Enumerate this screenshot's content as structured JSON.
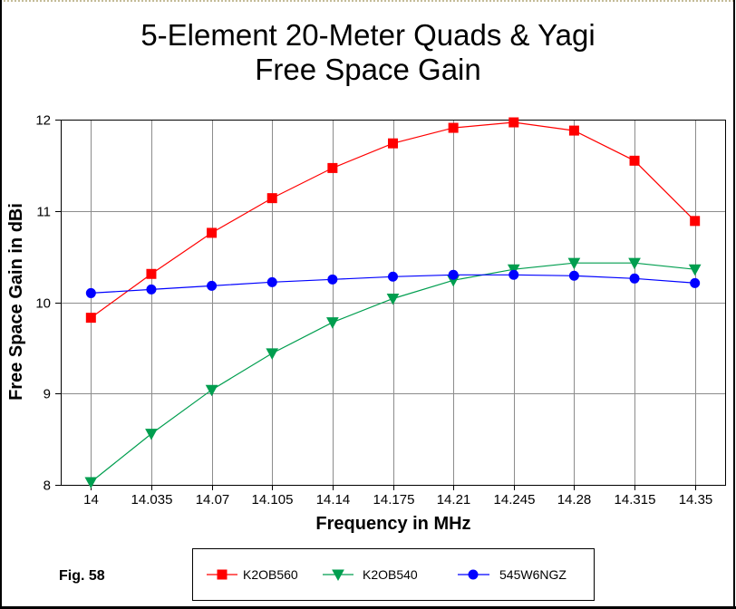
{
  "chart_data": {
    "type": "line",
    "title": "5-Element 20-Meter Quads & Yagi",
    "subtitle": "Free Space Gain",
    "xlabel": "Frequency in MHz",
    "ylabel": "Free Space Gain in dBi",
    "x": [
      14,
      14.035,
      14.07,
      14.105,
      14.14,
      14.175,
      14.21,
      14.245,
      14.28,
      14.315,
      14.35
    ],
    "xlim": [
      13.9825,
      14.3675
    ],
    "y_ticks": [
      12,
      11,
      10,
      9,
      8
    ],
    "ylim": [
      8,
      12
    ],
    "grid": true,
    "legend": "bottom",
    "series": [
      {
        "name": "K2OB560",
        "color": "#ff0000",
        "marker": "square",
        "values": [
          9.83,
          10.31,
          10.76,
          11.14,
          11.47,
          11.74,
          11.91,
          11.97,
          11.88,
          11.55,
          10.89
        ]
      },
      {
        "name": "K2OB540",
        "color": "#009e4f",
        "marker": "triangle-down",
        "values": [
          8.03,
          8.56,
          9.04,
          9.44,
          9.78,
          10.04,
          10.24,
          10.36,
          10.43,
          10.43,
          10.36
        ]
      },
      {
        "name": "545W6NGZ",
        "color": "#0000ff",
        "marker": "circle",
        "values": [
          10.1,
          10.14,
          10.18,
          10.22,
          10.25,
          10.28,
          10.3,
          10.3,
          10.29,
          10.26,
          10.21
        ]
      }
    ]
  },
  "figure_label": "Fig. 58"
}
